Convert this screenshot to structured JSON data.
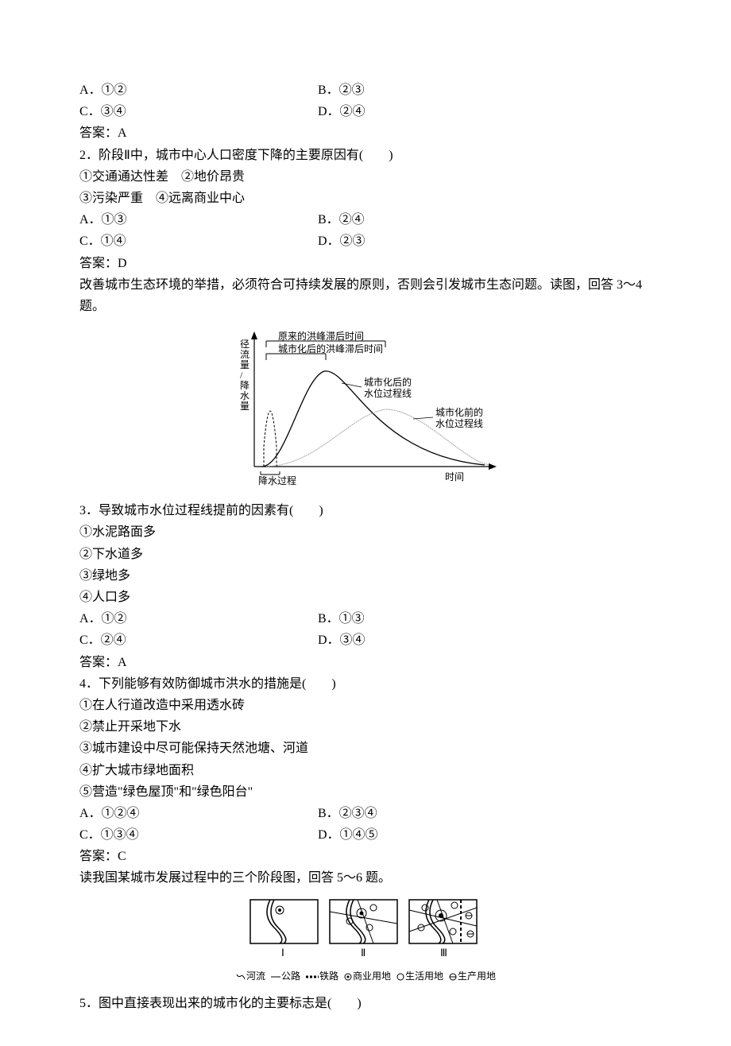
{
  "q1": {
    "optA": "A．①②",
    "optB": "B．②③",
    "optC": "C．③④",
    "optD": "D．②④",
    "answer": "答案：A"
  },
  "q2": {
    "stem": "2．阶段Ⅱ中，城市中心人口密度下降的主要原因有(　　)",
    "line1": "①交通通达性差　②地价昂贵",
    "line2": "③污染严重　④远离商业中心",
    "optA": "A．①③",
    "optB": "B．②④",
    "optC": "C．①④",
    "optD": "D．②③",
    "answer": "答案：D"
  },
  "intro34": "改善城市生态环境的举措，必须符合可持续发展的原则，否则会引发城市生态问题。读图，回答 3～4 题。",
  "chart1": {
    "y_label": "径流量/降水量",
    "x_label": "时间",
    "bracket1": "原来的洪峰滞后时间",
    "bracket2": "城市化后的洪峰滞后时间",
    "curve1_label1": "城市化后的",
    "curve1_label2": "水位过程线",
    "curve2_label1": "城市化前的",
    "curve2_label2": "水位过程线",
    "rain_label": "降水过程",
    "colors": {
      "axis": "#000000",
      "curve_after": "#000000",
      "curve_before": "#888888",
      "rain_dash": "#000000"
    }
  },
  "q3": {
    "stem": "3．导致城市水位过程线提前的因素有(　　)",
    "i1": "①水泥路面多",
    "i2": "②下水道多",
    "i3": "③绿地多",
    "i4": "④人口多",
    "optA": "A．①②",
    "optB": "B．①③",
    "optC": "C．②④",
    "optD": "D．③④",
    "answer": "答案：A"
  },
  "q4": {
    "stem": "4．下列能够有效防御城市洪水的措施是(　　)",
    "i1": "①在人行道改造中采用透水砖",
    "i2": "②禁止开采地下水",
    "i3": "③城市建设中尽可能保持天然池塘、河道",
    "i4": "④扩大城市绿地面积",
    "i5": "⑤营造\"绿色屋顶\"和\"绿色阳台\"",
    "optA": "A．①②④",
    "optB": "B．②③④",
    "optC": "C．①③④",
    "optD": "D．①④⑤",
    "answer": "答案：C"
  },
  "intro56": "读我国某城市发展过程中的三个阶段图，回答 5～6 题。",
  "chart2": {
    "panel1": "Ⅰ",
    "panel2": "Ⅱ",
    "panel3": "Ⅲ",
    "legend_river": "河流",
    "legend_road": "公路",
    "legend_rail": "铁路",
    "legend_commercial": "商业用地",
    "legend_living": "生活用地",
    "legend_production": "生产用地",
    "colors": {
      "border": "#000000",
      "river": "#000000",
      "road": "#000000"
    }
  },
  "q5": {
    "stem": "5．图中直接表现出来的城市化的主要标志是(　　)"
  }
}
